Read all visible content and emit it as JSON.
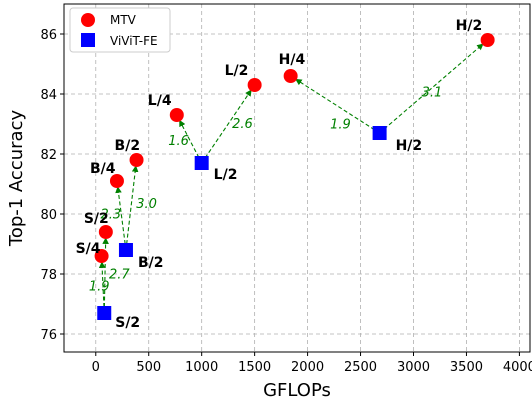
{
  "chart_data": {
    "type": "scatter",
    "xlabel": "GFLOPs",
    "ylabel": "Top-1 Accuracy",
    "xlim": [
      -300,
      4100
    ],
    "ylim": [
      75.4,
      87.0
    ],
    "xticks": [
      0,
      500,
      1000,
      1500,
      2000,
      2500,
      3000,
      3500,
      4000
    ],
    "yticks": [
      76,
      78,
      80,
      82,
      84,
      86
    ],
    "grid": true,
    "legend_position": "top-left",
    "series": [
      {
        "name": "MTV",
        "marker": "circle",
        "color": "#ff0000",
        "points": [
          {
            "label": "S/4",
            "x": 55,
            "y": 78.6
          },
          {
            "label": "S/2",
            "x": 95,
            "y": 79.4
          },
          {
            "label": "B/4",
            "x": 200,
            "y": 81.1
          },
          {
            "label": "B/2",
            "x": 385,
            "y": 81.8
          },
          {
            "label": "L/4",
            "x": 765,
            "y": 83.3
          },
          {
            "label": "L/2",
            "x": 1500,
            "y": 84.3
          },
          {
            "label": "H/4",
            "x": 1840,
            "y": 84.6
          },
          {
            "label": "H/2",
            "x": 3700,
            "y": 85.8
          }
        ]
      },
      {
        "name": "ViViT-FE",
        "marker": "square",
        "color": "#0000ff",
        "points": [
          {
            "label": "S/2",
            "x": 80,
            "y": 76.7
          },
          {
            "label": "B/2",
            "x": 285,
            "y": 78.8
          },
          {
            "label": "L/2",
            "x": 1000,
            "y": 81.7
          },
          {
            "label": "H/2",
            "x": 2680,
            "y": 82.7
          }
        ]
      }
    ],
    "arrows": [
      {
        "from": [
          80,
          76.7
        ],
        "to": [
          55,
          78.6
        ],
        "label": "1.9"
      },
      {
        "from": [
          80,
          76.7
        ],
        "to": [
          95,
          79.4
        ],
        "label": "2.7"
      },
      {
        "from": [
          285,
          78.8
        ],
        "to": [
          200,
          81.1
        ],
        "label": "2.3"
      },
      {
        "from": [
          285,
          78.8
        ],
        "to": [
          385,
          81.8
        ],
        "label": "3.0"
      },
      {
        "from": [
          1000,
          81.7
        ],
        "to": [
          765,
          83.3
        ],
        "label": "1.6"
      },
      {
        "from": [
          1000,
          81.7
        ],
        "to": [
          1500,
          84.3
        ],
        "label": "2.6"
      },
      {
        "from": [
          2680,
          82.7
        ],
        "to": [
          1840,
          84.6
        ],
        "label": "1.9"
      },
      {
        "from": [
          2680,
          82.7
        ],
        "to": [
          3700,
          85.8
        ],
        "label": "3.1"
      }
    ]
  }
}
